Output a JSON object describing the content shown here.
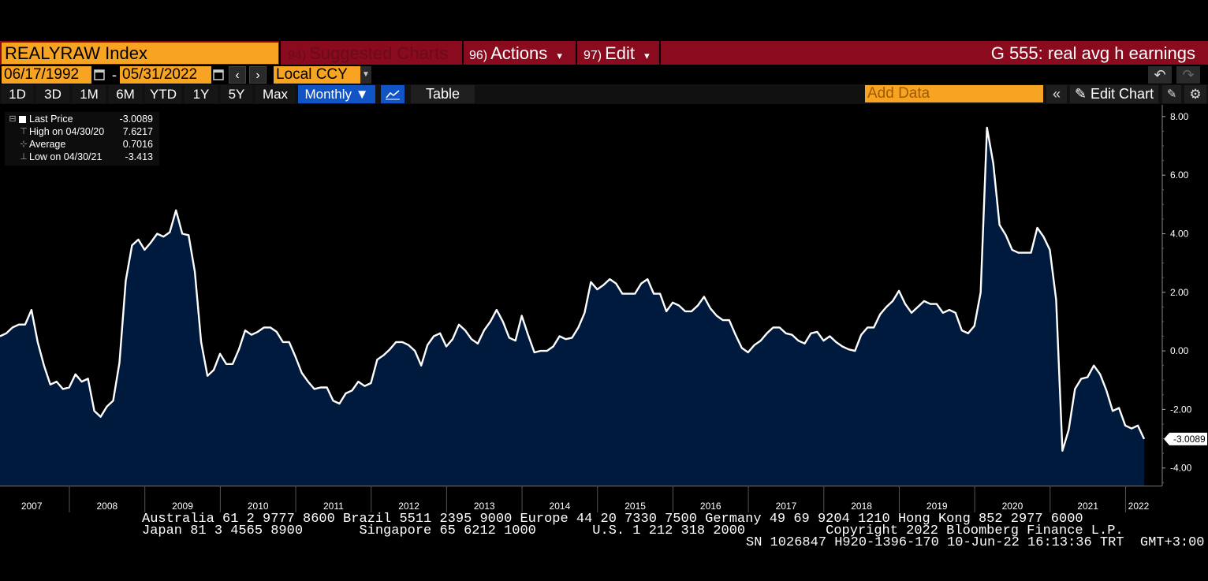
{
  "security": "REALYRAW Index",
  "menus": {
    "suggested": {
      "num": "94)",
      "label": "Suggested Charts"
    },
    "actions": {
      "num": "96)",
      "label": "Actions",
      "arrow": "▾"
    },
    "edit": {
      "num": "97)",
      "label": "Edit",
      "arrow": "▾"
    }
  },
  "chart_title": "G 555: real avg h earnings",
  "date_range": {
    "start": "06/17/1992",
    "separator": "-",
    "end": "05/31/2022"
  },
  "currency": "Local CCY",
  "periods": [
    "1D",
    "3D",
    "1M",
    "6M",
    "YTD",
    "1Y",
    "5Y",
    "Max"
  ],
  "frequency": "Monthly ▼",
  "table_label": "Table",
  "add_data_placeholder": "Add Data",
  "edit_chart_label": "Edit Chart",
  "legend": [
    {
      "symbol": "⊟",
      "name": "Last Price",
      "value": "-3.0089"
    },
    {
      "symbol": "⊤",
      "name": "High on 04/30/20",
      "value": "7.6217"
    },
    {
      "symbol": "⊹",
      "name": "Average",
      "value": "0.7016"
    },
    {
      "symbol": "⊥",
      "name": "Low on 04/30/21",
      "value": "-3.413"
    }
  ],
  "last_price_label": "-3.0089",
  "colors": {
    "accent_orange": "#f7a423",
    "title_bar": "#8a0a1e",
    "fill": "#001a3d",
    "line": "#ffffff",
    "selected": "#1054c6"
  },
  "footer": {
    "line1": "Australia 61 2 9777 8600 Brazil 5511 2395 9000 Europe 44 20 7330 7500 Germany 49 69 9204 1210 Hong Kong 852 2977 6000",
    "line2": "Japan 81 3 4565 8900       Singapore 65 6212 1000       U.S. 1 212 318 2000          Copyright 2022 Bloomberg Finance L.P.",
    "line3": "SN 1026847 H920-1396-170 10-Jun-22 16:13:36 TRT  GMT+3:00"
  },
  "chart_data": {
    "type": "area",
    "ylim": [
      -4.6,
      8.4
    ],
    "yticks": [
      8,
      6,
      4,
      2,
      0,
      -2,
      -4
    ],
    "ytick_labels": [
      "8.00",
      "6.00",
      "4.00",
      "2.00",
      "0.00",
      "-2.00",
      "-4.00"
    ],
    "x_labels": [
      "2007",
      "2008",
      "2009",
      "2010",
      "2011",
      "2012",
      "2013",
      "2014",
      "2015",
      "2016",
      "2017",
      "2018",
      "2019",
      "2020",
      "2021",
      "2022"
    ],
    "x_start": 2006.58,
    "x_step": 0.08333,
    "values": [
      0.5,
      0.6,
      0.8,
      0.9,
      0.9,
      1.4,
      0.3,
      -0.5,
      -1.15,
      -1.05,
      -1.3,
      -1.25,
      -0.8,
      -1.05,
      -0.95,
      -2.05,
      -2.25,
      -1.9,
      -1.7,
      -0.4,
      2.4,
      3.6,
      3.8,
      3.45,
      3.7,
      4.0,
      3.9,
      4.05,
      4.8,
      4.0,
      3.95,
      2.7,
      0.3,
      -0.85,
      -0.65,
      -0.1,
      -0.45,
      -0.45,
      0.05,
      0.7,
      0.55,
      0.65,
      0.8,
      0.8,
      0.65,
      0.3,
      0.3,
      -0.2,
      -0.75,
      -1.05,
      -1.3,
      -1.25,
      -1.25,
      -1.7,
      -1.8,
      -1.45,
      -1.35,
      -1.05,
      -1.2,
      -1.1,
      -0.3,
      -0.15,
      0.05,
      0.3,
      0.3,
      0.2,
      0.0,
      -0.5,
      0.2,
      0.5,
      0.6,
      0.15,
      0.4,
      0.9,
      0.7,
      0.4,
      0.25,
      0.7,
      1.0,
      1.4,
      1.0,
      0.45,
      0.35,
      1.2,
      0.55,
      -0.05,
      0.0,
      0.0,
      0.15,
      0.5,
      0.4,
      0.45,
      0.8,
      1.3,
      2.35,
      2.1,
      2.25,
      2.45,
      2.3,
      1.95,
      1.95,
      1.95,
      2.3,
      2.45,
      1.95,
      1.95,
      1.35,
      1.65,
      1.55,
      1.35,
      1.35,
      1.55,
      1.85,
      1.45,
      1.2,
      1.05,
      1.05,
      0.55,
      0.1,
      -0.05,
      0.2,
      0.35,
      0.6,
      0.8,
      0.8,
      0.6,
      0.55,
      0.35,
      0.25,
      0.6,
      0.65,
      0.35,
      0.5,
      0.3,
      0.15,
      0.05,
      0.0,
      0.55,
      0.8,
      0.8,
      1.25,
      1.5,
      1.7,
      2.05,
      1.6,
      1.3,
      1.5,
      1.7,
      1.6,
      1.6,
      1.3,
      1.4,
      1.3,
      0.7,
      0.6,
      0.85,
      2.0,
      7.62,
      6.4,
      4.3,
      3.95,
      3.45,
      3.35,
      3.35,
      3.35,
      4.2,
      3.9,
      3.45,
      1.75,
      -3.41,
      -2.7,
      -1.3,
      -0.95,
      -0.9,
      -0.5,
      -0.8,
      -1.35,
      -2.05,
      -1.95,
      -2.55,
      -2.65,
      -2.55,
      -3.01
    ]
  }
}
